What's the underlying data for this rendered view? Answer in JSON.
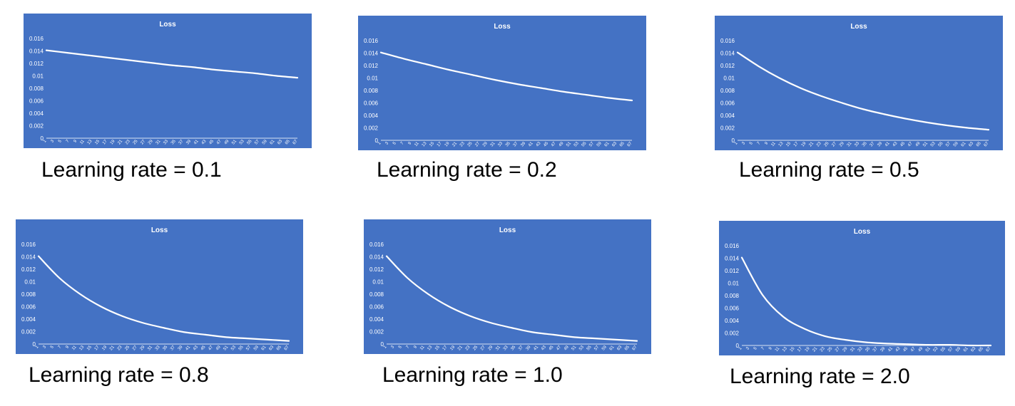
{
  "colors": {
    "plot_background": "#4472c4",
    "line": "#ffffff",
    "text": "#ffffff",
    "caption": "#000000"
  },
  "chart_data": [
    {
      "type": "line",
      "title": "Loss",
      "caption": "Learning rate = 0.1",
      "learning_rate": 0.1,
      "x_range": [
        1,
        67
      ],
      "x_tick_labels": [
        "1",
        "3",
        "5",
        "7",
        "9",
        "11",
        "13",
        "15",
        "17",
        "19",
        "21",
        "23",
        "25",
        "27",
        "29",
        "31",
        "33",
        "35",
        "37",
        "39",
        "41",
        "43",
        "45",
        "47",
        "49",
        "51",
        "53",
        "55",
        "57",
        "59",
        "61",
        "63",
        "65",
        "67"
      ],
      "y_tick_labels": [
        "0",
        "0.002",
        "0.004",
        "0.006",
        "0.008",
        "0.01",
        "0.012",
        "0.014",
        "0.016"
      ],
      "ylim": [
        0,
        0.016
      ],
      "grid": false,
      "series": [
        {
          "values": [
            0.0141,
            0.0137,
            0.0133,
            0.0129,
            0.0125,
            0.0121,
            0.0117,
            0.0114,
            0.011,
            0.0107,
            0.0104,
            0.01,
            0.0097
          ]
        }
      ]
    },
    {
      "type": "line",
      "title": "Loss",
      "caption": "Learning rate = 0.2",
      "learning_rate": 0.2,
      "x_range": [
        1,
        67
      ],
      "x_tick_labels": [
        "1",
        "3",
        "5",
        "7",
        "9",
        "11",
        "13",
        "15",
        "17",
        "19",
        "21",
        "23",
        "25",
        "27",
        "29",
        "31",
        "33",
        "35",
        "37",
        "39",
        "41",
        "43",
        "45",
        "47",
        "49",
        "51",
        "53",
        "55",
        "57",
        "59",
        "61",
        "63",
        "65",
        "67"
      ],
      "y_tick_labels": [
        "0",
        "0.002",
        "0.004",
        "0.006",
        "0.008",
        "0.01",
        "0.012",
        "0.014",
        "0.016"
      ],
      "ylim": [
        0,
        0.016
      ],
      "grid": false,
      "series": [
        {
          "values": [
            0.0141,
            0.0131,
            0.0122,
            0.0113,
            0.0105,
            0.0097,
            0.009,
            0.0084,
            0.0078,
            0.0073,
            0.0068,
            0.0064
          ]
        }
      ]
    },
    {
      "type": "line",
      "title": "Loss",
      "caption": "Learning rate = 0.5",
      "learning_rate": 0.5,
      "x_range": [
        1,
        67
      ],
      "x_tick_labels": [
        "1",
        "3",
        "5",
        "7",
        "9",
        "11",
        "13",
        "15",
        "17",
        "19",
        "21",
        "23",
        "25",
        "27",
        "29",
        "31",
        "33",
        "35",
        "37",
        "39",
        "41",
        "43",
        "45",
        "47",
        "49",
        "51",
        "53",
        "55",
        "57",
        "59",
        "61",
        "63",
        "65",
        "67"
      ],
      "y_tick_labels": [
        "0",
        "0.002",
        "0.004",
        "0.006",
        "0.008",
        "0.01",
        "0.012",
        "0.014",
        "0.016"
      ],
      "ylim": [
        0,
        0.016
      ],
      "grid": false,
      "series": [
        {
          "values": [
            0.0141,
            0.0119,
            0.01,
            0.0084,
            0.0071,
            0.006,
            0.005,
            0.0042,
            0.0035,
            0.0029,
            0.0024,
            0.002,
            0.0017
          ]
        }
      ]
    },
    {
      "type": "line",
      "title": "Loss",
      "caption": "Learning rate = 0.8",
      "learning_rate": 0.8,
      "x_range": [
        1,
        67
      ],
      "x_tick_labels": [
        "1",
        "3",
        "5",
        "7",
        "9",
        "11",
        "13",
        "15",
        "17",
        "19",
        "21",
        "23",
        "25",
        "27",
        "29",
        "31",
        "33",
        "35",
        "37",
        "39",
        "41",
        "43",
        "45",
        "47",
        "49",
        "51",
        "53",
        "55",
        "57",
        "59",
        "61",
        "63",
        "65",
        "67"
      ],
      "y_tick_labels": [
        "0",
        "0.002",
        "0.004",
        "0.006",
        "0.008",
        "0.01",
        "0.012",
        "0.014",
        "0.016"
      ],
      "ylim": [
        0,
        0.016
      ],
      "grid": false,
      "series": [
        {
          "values": [
            0.0141,
            0.0106,
            0.008,
            0.006,
            0.0045,
            0.0034,
            0.0026,
            0.0019,
            0.0015,
            0.0011,
            0.0009,
            0.0007,
            0.0005
          ]
        }
      ]
    },
    {
      "type": "line",
      "title": "Loss",
      "caption": "Learning rate = 1.0",
      "learning_rate": 1.0,
      "x_range": [
        1,
        67
      ],
      "x_tick_labels": [
        "1",
        "3",
        "5",
        "7",
        "9",
        "11",
        "13",
        "15",
        "17",
        "19",
        "21",
        "23",
        "25",
        "27",
        "29",
        "31",
        "33",
        "35",
        "37",
        "39",
        "41",
        "43",
        "45",
        "47",
        "49",
        "51",
        "53",
        "55",
        "57",
        "59",
        "61",
        "63",
        "65",
        "67"
      ],
      "y_tick_labels": [
        "0",
        "0.002",
        "0.004",
        "0.006",
        "0.008",
        "0.01",
        "0.012",
        "0.014",
        "0.016"
      ],
      "ylim": [
        0,
        0.016
      ],
      "grid": false,
      "series": [
        {
          "values": [
            0.0141,
            0.0106,
            0.008,
            0.006,
            0.0045,
            0.0034,
            0.0026,
            0.0019,
            0.0015,
            0.0011,
            0.0009,
            0.0007,
            0.0005
          ]
        }
      ]
    },
    {
      "type": "line",
      "title": "Loss",
      "caption": "Learning rate = 2.0",
      "learning_rate": 2.0,
      "x_range": [
        1,
        67
      ],
      "x_tick_labels": [
        "1",
        "3",
        "5",
        "7",
        "9",
        "11",
        "13",
        "15",
        "17",
        "19",
        "21",
        "23",
        "25",
        "27",
        "29",
        "31",
        "33",
        "35",
        "37",
        "39",
        "41",
        "43",
        "45",
        "47",
        "49",
        "51",
        "53",
        "55",
        "57",
        "59",
        "61",
        "63",
        "65",
        "67"
      ],
      "y_tick_labels": [
        "0",
        "0.002",
        "0.004",
        "0.006",
        "0.008",
        "0.01",
        "0.012",
        "0.014",
        "0.016"
      ],
      "ylim": [
        0,
        0.016
      ],
      "grid": false,
      "series": [
        {
          "values": [
            0.0141,
            0.0081,
            0.0046,
            0.0027,
            0.0015,
            0.0009,
            0.0005,
            0.0003,
            0.0002,
            0.0001,
            0.0001,
            0.0,
            0.0
          ]
        }
      ]
    }
  ]
}
